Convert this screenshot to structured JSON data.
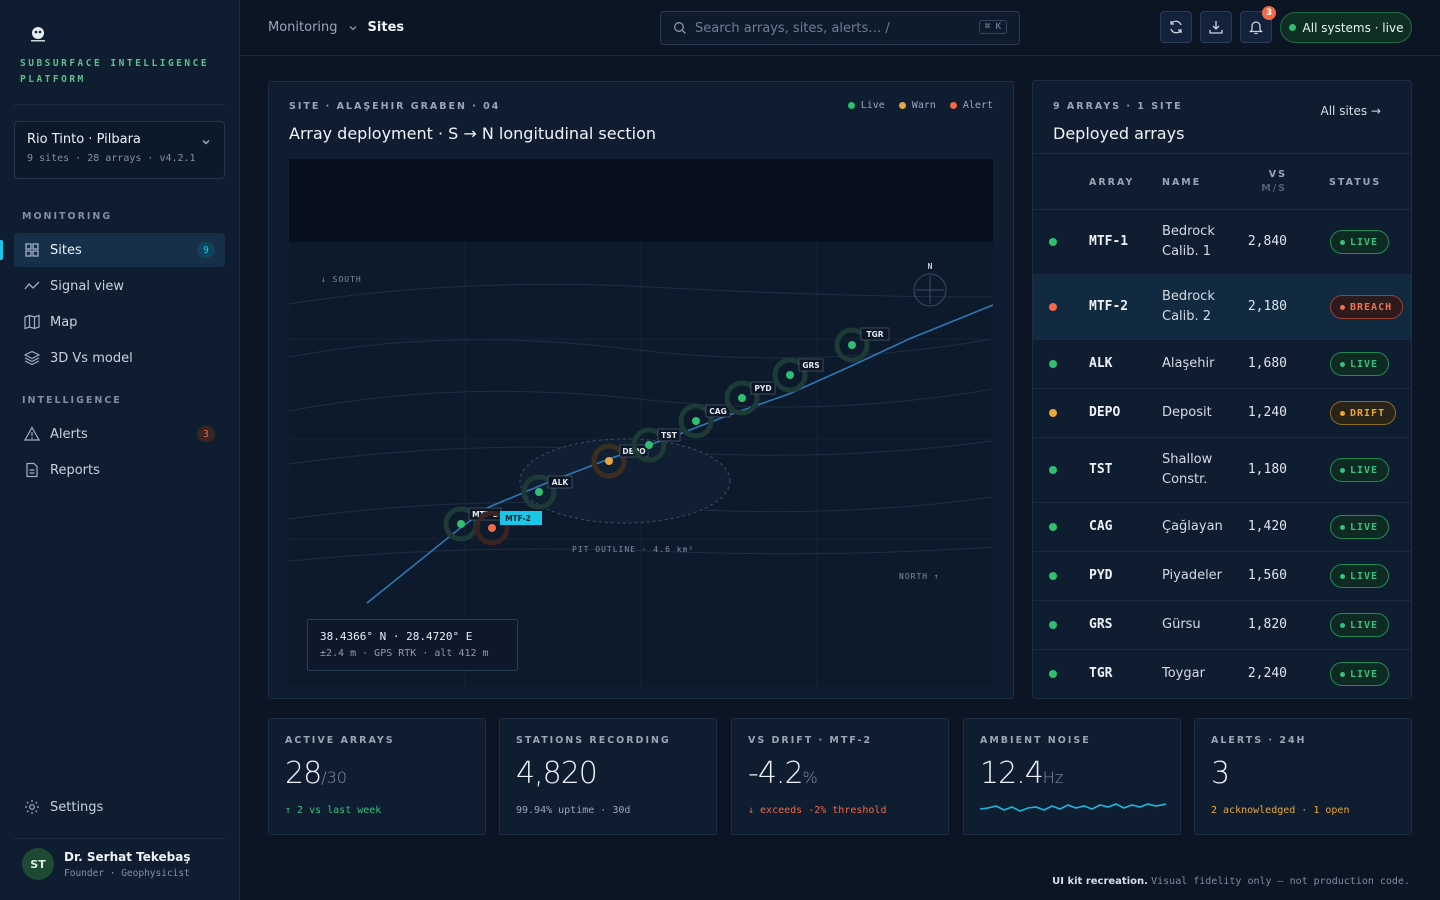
{
  "brand": {
    "name": "SUBSURFACE INTELLIGENCE PLATFORM",
    "logo_icon": "brand-logo-icon"
  },
  "org": {
    "name": "Rio Tinto · Pilbara",
    "meta": "9 sites · 28 arrays · v4.2.1"
  },
  "nav": {
    "monitoring_label": "MONITORING",
    "intelligence_label": "INTELLIGENCE",
    "items": [
      {
        "label": "Sites",
        "icon": "grid-icon",
        "badge": "9",
        "active": true
      },
      {
        "label": "Signal view",
        "icon": "signal-wave-icon"
      },
      {
        "label": "Map",
        "icon": "map-icon"
      },
      {
        "label": "3D Vs model",
        "icon": "layers-icon"
      },
      {
        "label": "Alerts",
        "icon": "alert-triangle-icon",
        "badge": "3"
      },
      {
        "label": "Reports",
        "icon": "document-icon"
      }
    ],
    "settings": "Settings"
  },
  "user": {
    "initials": "ST",
    "name": "Dr. Serhat Tekebaş",
    "role": "Founder · Geophysicist"
  },
  "topbar": {
    "breadcrumb": [
      "Monitoring",
      "Sites"
    ],
    "search_placeholder": "Search arrays, sites, alerts… /",
    "search_shortcut": "⌘ K",
    "notifications": "3",
    "system_status": "All systems · live"
  },
  "section": {
    "eyebrow": "SITE · ALAŞEHIR GRABEN · 04",
    "title": "Array deployment · S → N longitudinal section",
    "legend": [
      {
        "label": "Live",
        "color": "#2fbf71"
      },
      {
        "label": "Warn",
        "color": "#e9a63b"
      },
      {
        "label": "Alert",
        "color": "#ef6a45"
      }
    ],
    "map_labels": {
      "south": "↓ SOUTH",
      "north": "NORTH ↑",
      "compass": "N",
      "pit": "PIT OUTLINE · 4.6 km²"
    },
    "markers": [
      {
        "code": "MTF-1",
        "status": "live"
      },
      {
        "code": "MTF-2",
        "status": "alert"
      },
      {
        "code": "ALK",
        "status": "live"
      },
      {
        "code": "DEPO",
        "status": "warn"
      },
      {
        "code": "TST",
        "status": "live"
      },
      {
        "code": "CAG",
        "status": "live"
      },
      {
        "code": "PYD",
        "status": "live"
      },
      {
        "code": "GRS",
        "status": "live"
      },
      {
        "code": "TGR",
        "status": "live"
      }
    ],
    "coords": {
      "line1": "38.4366° N · 28.4720° E",
      "line2": "±2.4 m · GPS RTK · alt 412 m"
    }
  },
  "arrays_panel": {
    "eyebrow": "9 ARRAYS · 1 SITE",
    "title": "Deployed arrays",
    "link": "All sites →",
    "columns": {
      "array": "ARRAY",
      "name": "NAME",
      "vs": "VS",
      "vs_unit": "M/S",
      "status": "STATUS"
    },
    "rows": [
      {
        "code": "MTF-1",
        "name": "Bedrock Calib. 1",
        "vs": "2,840",
        "status": "LIVE",
        "kind": "live"
      },
      {
        "code": "MTF-2",
        "name": "Bedrock Calib. 2",
        "vs": "2,180",
        "status": "BREACH",
        "kind": "breach"
      },
      {
        "code": "ALK",
        "name": "Alaşehir",
        "vs": "1,680",
        "status": "LIVE",
        "kind": "live"
      },
      {
        "code": "DEPO",
        "name": "Deposit",
        "vs": "1,240",
        "status": "DRIFT",
        "kind": "drift"
      },
      {
        "code": "TST",
        "name": "Shallow Constr.",
        "vs": "1,180",
        "status": "LIVE",
        "kind": "live"
      },
      {
        "code": "CAG",
        "name": "Çağlayan",
        "vs": "1,420",
        "status": "LIVE",
        "kind": "live"
      },
      {
        "code": "PYD",
        "name": "Piyadeler",
        "vs": "1,560",
        "status": "LIVE",
        "kind": "live"
      },
      {
        "code": "GRS",
        "name": "Gürsu",
        "vs": "1,820",
        "status": "LIVE",
        "kind": "live"
      },
      {
        "code": "TGR",
        "name": "Toygar",
        "vs": "2,240",
        "status": "LIVE",
        "kind": "live"
      }
    ]
  },
  "stats": [
    {
      "label": "ACTIVE ARRAYS",
      "value": "28",
      "unit": "/30",
      "sub": "↑ 2 vs last week",
      "sub_color": "#33c27d"
    },
    {
      "label": "STATIONS RECORDING",
      "value": "4,820",
      "unit": "",
      "sub": "99.94% uptime · 30d",
      "sub_color": "#9aa6b7"
    },
    {
      "label": "VS DRIFT · MTF-2",
      "value": "-4.2",
      "unit": "%",
      "sub": "↓ exceeds -2% threshold",
      "sub_color": "#ef6a45"
    },
    {
      "label": "AMBIENT NOISE",
      "value": "12.4",
      "unit": "Hz",
      "sub": "",
      "sub_color": "#9aa6b7"
    },
    {
      "label": "ALERTS · 24H",
      "value": "3",
      "unit": "",
      "sub": "2 acknowledged · 1 open",
      "sub_color": "#e9a63b"
    }
  ],
  "footer": {
    "bold": "UI kit recreation.",
    "text": "Visual fidelity only — not production code."
  }
}
